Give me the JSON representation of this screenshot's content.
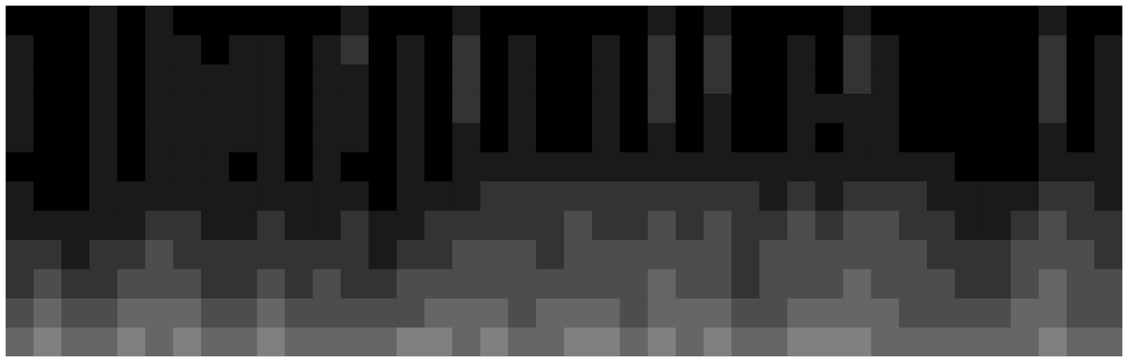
{
  "chart_data": {
    "type": "heatmap",
    "tick_labels": false,
    "xlim": [
      0,
      40
    ],
    "ylim": [
      0,
      12
    ],
    "zlim": [
      0,
      10
    ],
    "cells": [
      [
        4,
        5,
        4,
        4,
        5,
        4,
        5,
        4,
        4,
        5,
        4,
        4,
        4,
        4,
        5,
        5,
        4,
        5,
        4,
        4,
        5,
        5,
        4,
        5,
        4,
        5,
        4,
        4,
        5,
        5,
        5,
        4,
        4,
        4,
        4,
        4,
        4,
        5,
        4,
        4
      ],
      [
        3,
        4,
        3,
        3,
        4,
        4,
        4,
        3,
        3,
        4,
        3,
        3,
        3,
        3,
        3,
        4,
        4,
        4,
        3,
        4,
        4,
        4,
        3,
        4,
        4,
        4,
        3,
        3,
        4,
        4,
        4,
        4,
        3,
        3,
        3,
        3,
        4,
        4,
        3,
        3
      ],
      [
        2,
        3,
        2,
        2,
        3,
        3,
        3,
        2,
        2,
        3,
        2,
        3,
        2,
        2,
        3,
        3,
        3,
        3,
        3,
        3,
        3,
        3,
        3,
        4,
        3,
        3,
        2,
        3,
        3,
        3,
        4,
        3,
        3,
        3,
        2,
        2,
        3,
        4,
        3,
        3
      ],
      [
        2,
        2,
        1,
        2,
        2,
        3,
        2,
        2,
        2,
        2,
        2,
        2,
        2,
        1,
        2,
        2,
        3,
        3,
        3,
        2,
        3,
        3,
        3,
        3,
        3,
        3,
        2,
        3,
        3,
        3,
        3,
        3,
        3,
        2,
        2,
        2,
        3,
        3,
        3,
        2
      ],
      [
        1,
        1,
        1,
        1,
        1,
        2,
        2,
        1,
        1,
        2,
        1,
        1,
        2,
        1,
        1,
        2,
        2,
        2,
        2,
        2,
        3,
        2,
        2,
        3,
        2,
        3,
        2,
        2,
        3,
        2,
        3,
        3,
        2,
        2,
        1,
        1,
        2,
        3,
        2,
        2
      ],
      [
        1,
        0,
        0,
        1,
        1,
        1,
        1,
        1,
        1,
        1,
        1,
        1,
        1,
        0,
        1,
        1,
        1,
        2,
        2,
        2,
        2,
        2,
        2,
        2,
        2,
        2,
        2,
        1,
        2,
        1,
        2,
        2,
        2,
        1,
        1,
        1,
        1,
        2,
        2,
        1
      ],
      [
        0,
        0,
        0,
        1,
        0,
        1,
        1,
        1,
        0,
        1,
        0,
        1,
        0,
        0,
        1,
        0,
        1,
        1,
        1,
        1,
        1,
        1,
        1,
        1,
        1,
        1,
        1,
        1,
        1,
        1,
        1,
        1,
        1,
        1,
        0,
        0,
        0,
        1,
        1,
        1
      ],
      [
        1,
        0,
        0,
        1,
        0,
        1,
        1,
        1,
        1,
        1,
        0,
        1,
        1,
        0,
        1,
        0,
        1,
        0,
        1,
        0,
        0,
        1,
        0,
        1,
        0,
        1,
        0,
        0,
        1,
        0,
        1,
        1,
        0,
        0,
        0,
        0,
        0,
        1,
        0,
        1
      ],
      [
        1,
        0,
        0,
        1,
        0,
        1,
        1,
        1,
        1,
        1,
        0,
        1,
        1,
        0,
        1,
        0,
        2,
        0,
        1,
        0,
        0,
        1,
        0,
        2,
        0,
        1,
        0,
        0,
        1,
        1,
        1,
        1,
        0,
        0,
        0,
        0,
        0,
        2,
        0,
        1
      ],
      [
        1,
        0,
        0,
        1,
        0,
        1,
        1,
        1,
        1,
        1,
        0,
        1,
        1,
        0,
        1,
        0,
        2,
        0,
        1,
        0,
        0,
        1,
        0,
        2,
        0,
        2,
        0,
        0,
        1,
        0,
        2,
        1,
        0,
        0,
        0,
        0,
        0,
        2,
        0,
        1
      ],
      [
        1,
        0,
        0,
        1,
        0,
        1,
        1,
        0,
        1,
        1,
        0,
        1,
        2,
        0,
        1,
        0,
        2,
        0,
        1,
        0,
        0,
        1,
        0,
        2,
        0,
        2,
        0,
        0,
        1,
        0,
        2,
        1,
        0,
        0,
        0,
        0,
        0,
        2,
        0,
        1
      ],
      [
        0,
        0,
        0,
        1,
        0,
        1,
        0,
        0,
        0,
        0,
        0,
        0,
        1,
        0,
        0,
        0,
        1,
        0,
        0,
        0,
        0,
        0,
        0,
        1,
        0,
        1,
        0,
        0,
        0,
        0,
        1,
        0,
        0,
        0,
        0,
        0,
        0,
        1,
        0,
        0
      ]
    ]
  }
}
